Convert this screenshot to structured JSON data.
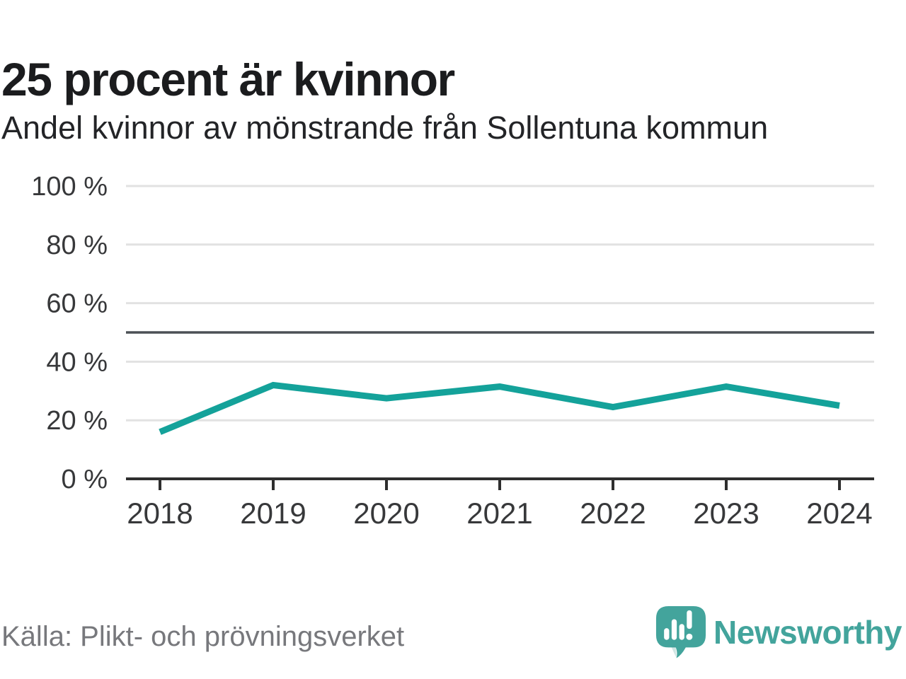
{
  "header": {
    "title": "25 procent är kvinnor",
    "subtitle": "Andel kvinnor av mönstrande från Sollentuna kommun"
  },
  "footer": {
    "source": "Källa: Plikt- och prövningsverket",
    "brand": "Newsworthy",
    "logo_icon": "newsworthy-bubble-barchart-icon"
  },
  "colors": {
    "line_teal": "#14a29a",
    "grid": "#e2e2e2",
    "reference_line": "#4c5055",
    "axis": "#2e2e2e",
    "tick_label": "#37383a",
    "title_text": "#1b1c1e",
    "source_text": "#77787c",
    "logo_teal": "#43a49c",
    "logo_tail_shade": "#2e8b84",
    "background": "#ffffff"
  },
  "chart_data": {
    "type": "line",
    "title": "25 procent är kvinnor",
    "subtitle": "Andel kvinnor av mönstrande från Sollentuna kommun",
    "source": "Källa: Plikt- och prövningsverket",
    "x": [
      "2018",
      "2019",
      "2020",
      "2021",
      "2022",
      "2023",
      "2024"
    ],
    "series": [
      {
        "name": "Andel kvinnor av mönstrande",
        "color": "#14a29a",
        "values": [
          16,
          32,
          27.5,
          31.5,
          24.5,
          31.5,
          25
        ]
      }
    ],
    "unit": "%",
    "ylim": [
      0,
      100
    ],
    "y_ticks": [
      {
        "value": 100,
        "label": "100 %"
      },
      {
        "value": 80,
        "label": "80 %"
      },
      {
        "value": 60,
        "label": "60 %"
      },
      {
        "value": 40,
        "label": "40 %"
      },
      {
        "value": 20,
        "label": "20 %"
      },
      {
        "value": 0,
        "label": "0 %"
      }
    ],
    "reference_line_value": 50,
    "grid": true,
    "legend_position": "none",
    "x_axis_visible": true,
    "y_axis_line_visible": false
  }
}
